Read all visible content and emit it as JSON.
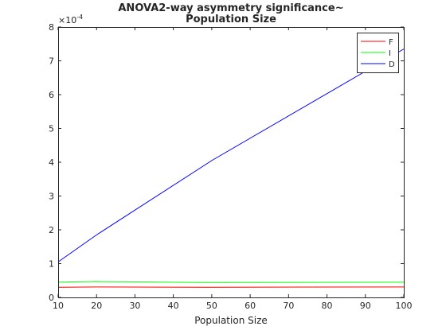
{
  "chart_data": {
    "type": "line",
    "title_lines": [
      "ANOVA2-way asymmetry significance~",
      "Population Size"
    ],
    "xlabel": "Population Size",
    "ylabel": "",
    "xlim": [
      10,
      100
    ],
    "ylim": [
      0,
      8
    ],
    "y_multiplier_label": "×10",
    "y_multiplier_exponent": "-4",
    "x_ticks": [
      "10",
      "20",
      "30",
      "40",
      "50",
      "60",
      "70",
      "80",
      "90",
      "100"
    ],
    "y_ticks": [
      "0",
      "1",
      "2",
      "3",
      "4",
      "5",
      "6",
      "7",
      "8"
    ],
    "x": [
      10,
      20,
      50,
      100
    ],
    "series": [
      {
        "name": "F",
        "color": "#ff0000",
        "values": [
          0.3,
          0.31,
          0.3,
          0.31
        ]
      },
      {
        "name": "I",
        "color": "#00ff00",
        "values": [
          0.45,
          0.47,
          0.44,
          0.45
        ]
      },
      {
        "name": "D",
        "color": "#0000ff",
        "values": [
          1.05,
          1.85,
          4.05,
          7.35
        ]
      }
    ],
    "legend_position": "top-right",
    "grid": false
  }
}
